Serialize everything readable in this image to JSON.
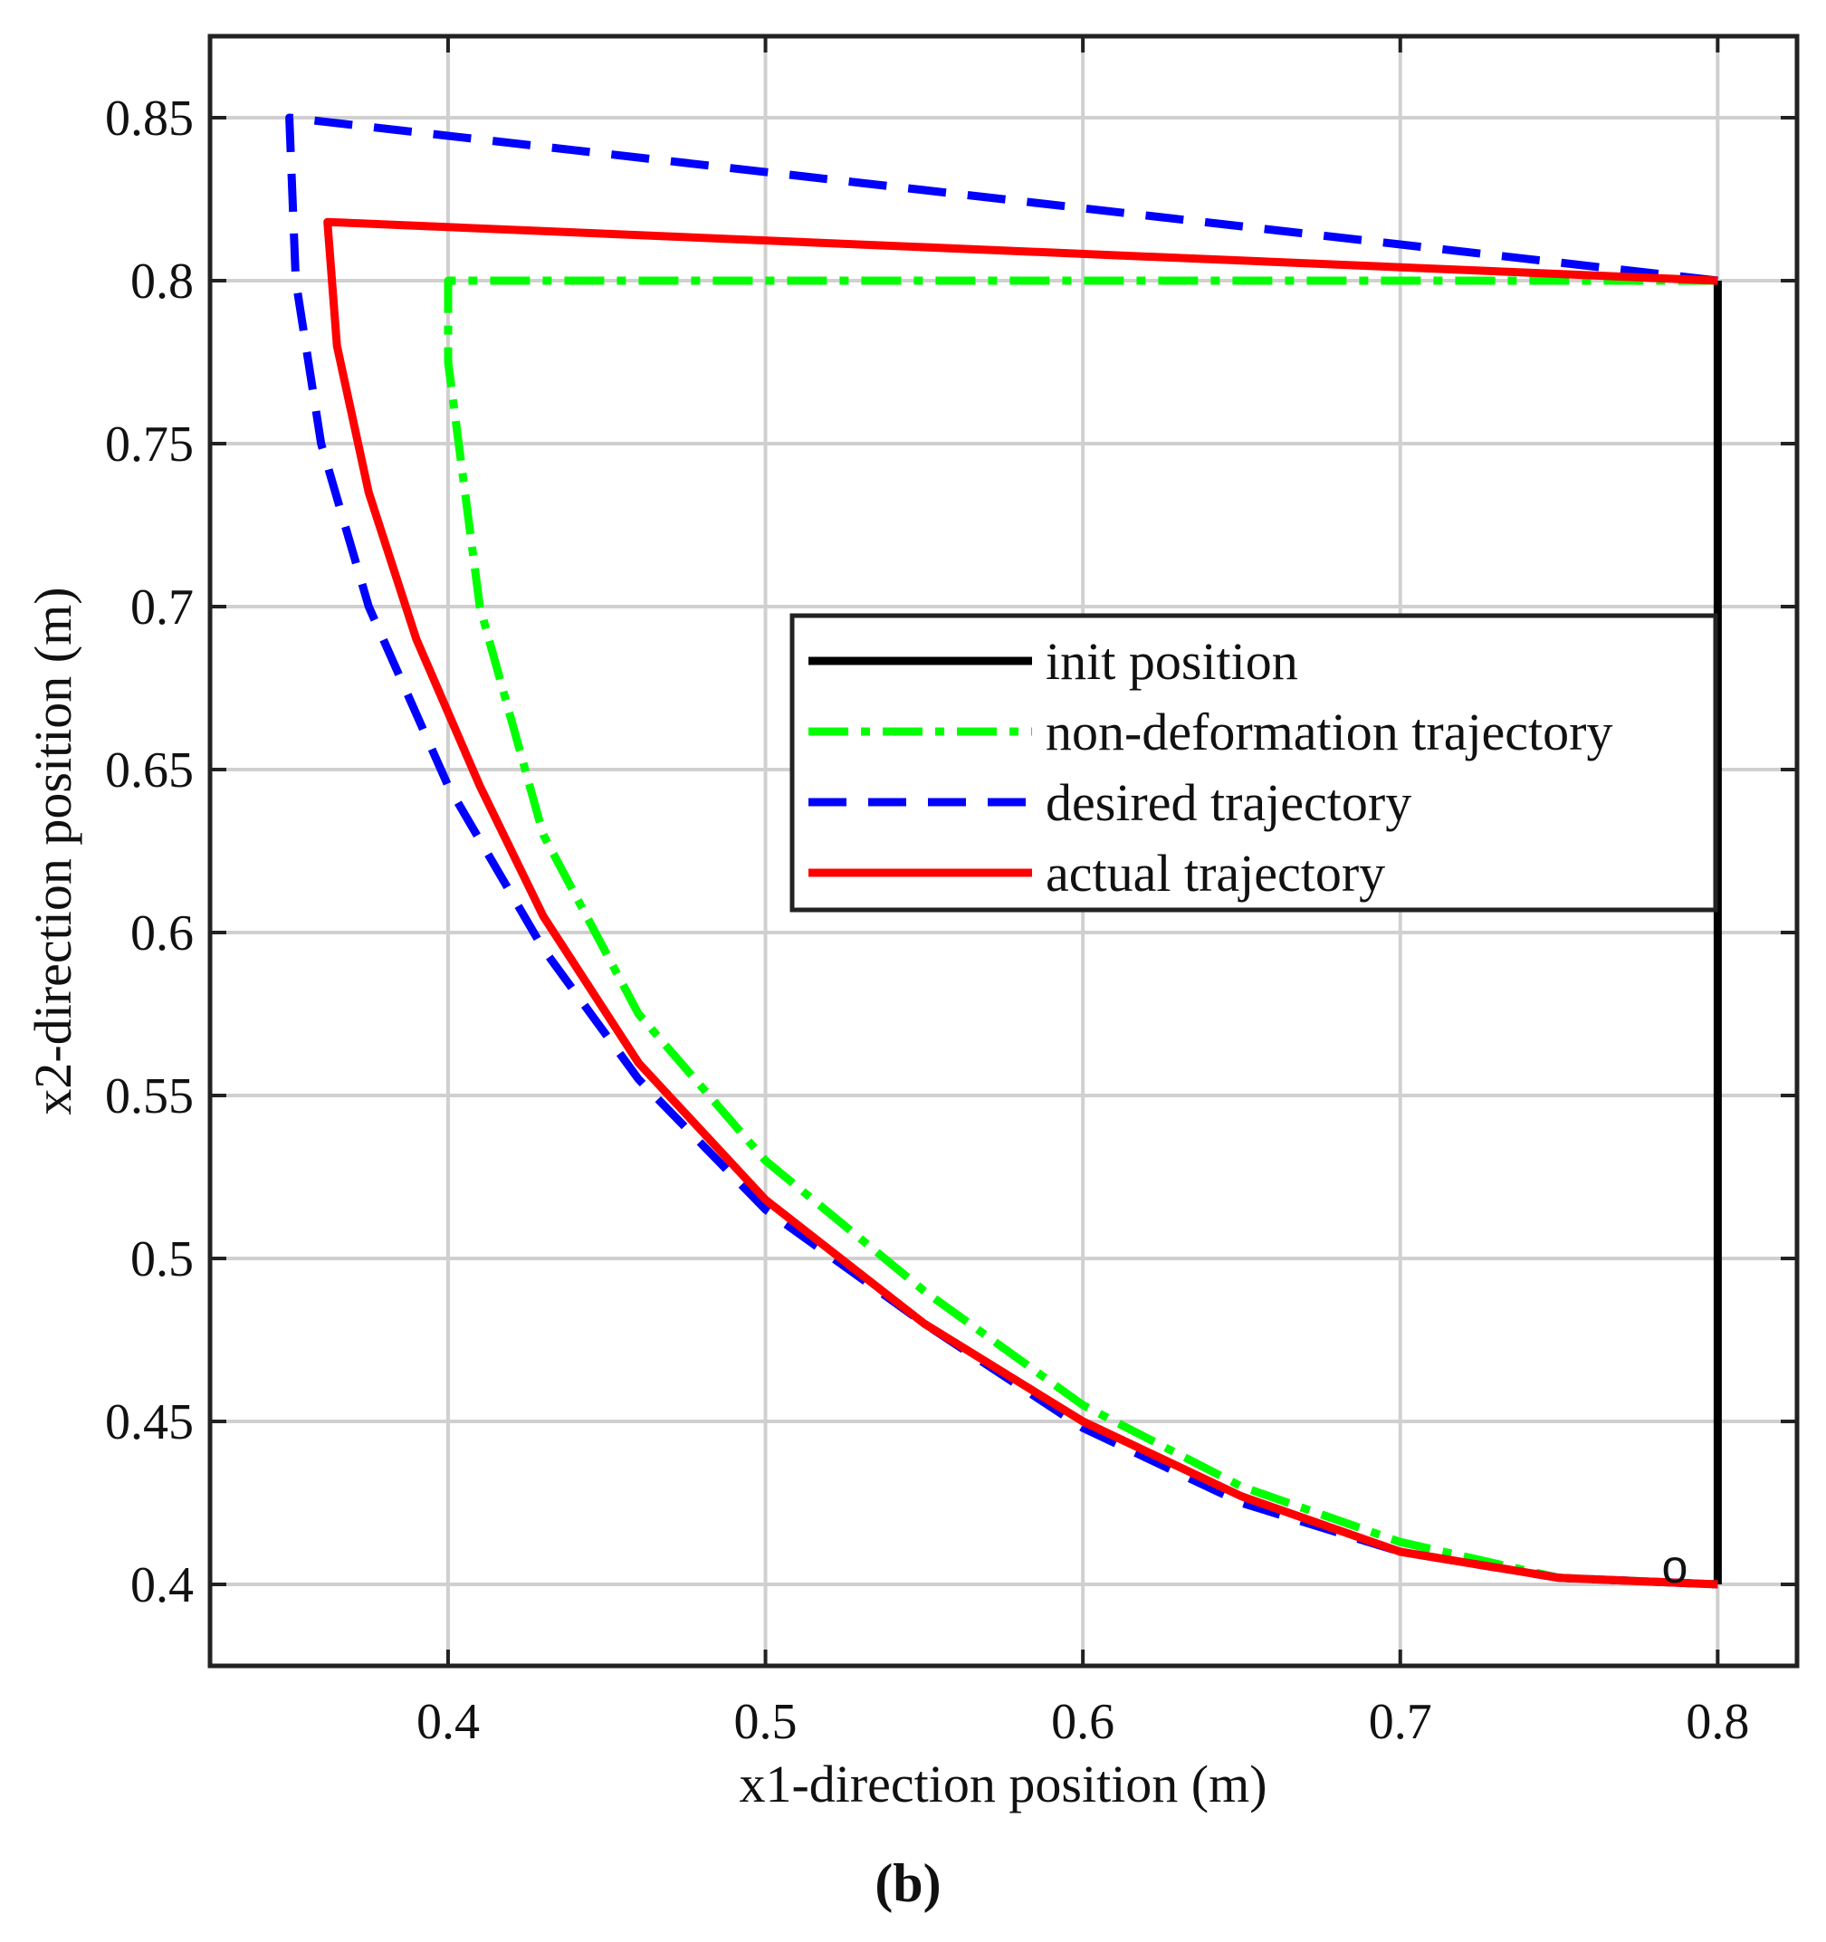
{
  "figure_label": "(b)",
  "chart_data": {
    "type": "line",
    "title": "",
    "xlabel": "x1-direction position (m)",
    "ylabel": "x2-direction position (m)",
    "xlim": [
      0.325,
      0.825
    ],
    "ylim": [
      0.375,
      0.875
    ],
    "xticks": [
      0.4,
      0.5,
      0.6,
      0.7,
      0.8
    ],
    "yticks": [
      0.4,
      0.45,
      0.5,
      0.55,
      0.6,
      0.65,
      0.7,
      0.75,
      0.8,
      0.85
    ],
    "xtick_labels": [
      "0.4",
      "0.5",
      "0.6",
      "0.7",
      "0.8"
    ],
    "ytick_labels": [
      "0.4",
      "0.45",
      "0.5",
      "0.55",
      "0.6",
      "0.65",
      "0.7",
      "0.75",
      "0.8",
      "0.85"
    ],
    "grid": true,
    "legend_position": "center-right",
    "annotations": [
      {
        "text": "o",
        "x": 0.79,
        "y": 0.79
      }
    ],
    "series": [
      {
        "name": "init position",
        "color": "#000000",
        "style": "solid",
        "x": [
          0.8,
          0.8
        ],
        "y": [
          0.4,
          0.8
        ]
      },
      {
        "name": "non-deformation trajectory",
        "color": "#00ff00",
        "style": "dashdot",
        "x": [
          0.8,
          0.4,
          0.4,
          0.41,
          0.43,
          0.46,
          0.5,
          0.55,
          0.6,
          0.65,
          0.7,
          0.75,
          0.8
        ],
        "y": [
          0.8,
          0.8,
          0.775,
          0.7,
          0.63,
          0.575,
          0.53,
          0.49,
          0.455,
          0.43,
          0.413,
          0.402,
          0.4
        ]
      },
      {
        "name": "desired trajectory",
        "color": "#0000ff",
        "style": "dashed",
        "x": [
          0.8,
          0.35,
          0.352,
          0.36,
          0.375,
          0.4,
          0.43,
          0.46,
          0.5,
          0.55,
          0.6,
          0.65,
          0.7,
          0.75,
          0.8
        ],
        "y": [
          0.8,
          0.85,
          0.8,
          0.75,
          0.7,
          0.645,
          0.595,
          0.555,
          0.515,
          0.48,
          0.448,
          0.425,
          0.41,
          0.402,
          0.4
        ]
      },
      {
        "name": "actual trajectory",
        "color": "#ff0000",
        "style": "solid",
        "x": [
          0.8,
          0.362,
          0.365,
          0.375,
          0.39,
          0.41,
          0.43,
          0.46,
          0.5,
          0.55,
          0.6,
          0.65,
          0.7,
          0.75,
          0.8
        ],
        "y": [
          0.8,
          0.818,
          0.78,
          0.735,
          0.69,
          0.645,
          0.605,
          0.56,
          0.518,
          0.48,
          0.45,
          0.427,
          0.41,
          0.402,
          0.4
        ]
      }
    ]
  }
}
